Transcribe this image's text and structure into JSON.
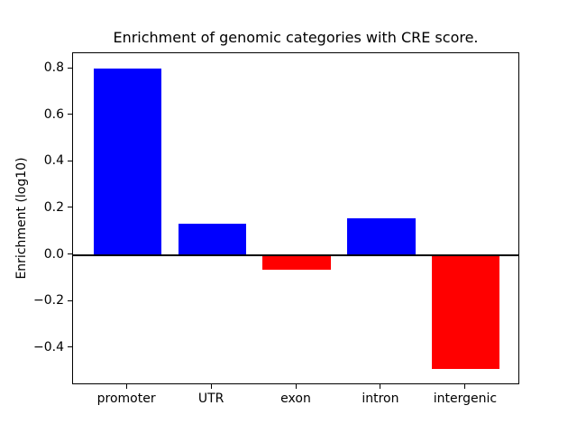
{
  "chart_data": {
    "type": "bar",
    "title": "Enrichment of genomic categories with CRE score.",
    "xlabel": "",
    "ylabel": "Enrichment (log10)",
    "categories": [
      "promoter",
      "UTR",
      "exon",
      "intron",
      "intergenic"
    ],
    "values": [
      0.8,
      0.135,
      -0.063,
      0.157,
      -0.49
    ],
    "bar_colors": [
      "#0000ff",
      "#0000ff",
      "#ff0000",
      "#0000ff",
      "#ff0000"
    ],
    "positive_color": "#0000ff",
    "negative_color": "#ff0000",
    "zero_line_color": "#000000",
    "ylim": [
      -0.56,
      0.866
    ],
    "yticks": [
      0.8,
      0.6,
      0.4,
      0.2,
      0.0,
      -0.2,
      -0.4
    ],
    "ytick_labels": [
      "0.8",
      "0.6",
      "0.4",
      "0.2",
      "0.0",
      "−0.2",
      "−0.4"
    ],
    "bar_width_fraction": 0.8,
    "grid": false,
    "legend": null
  }
}
